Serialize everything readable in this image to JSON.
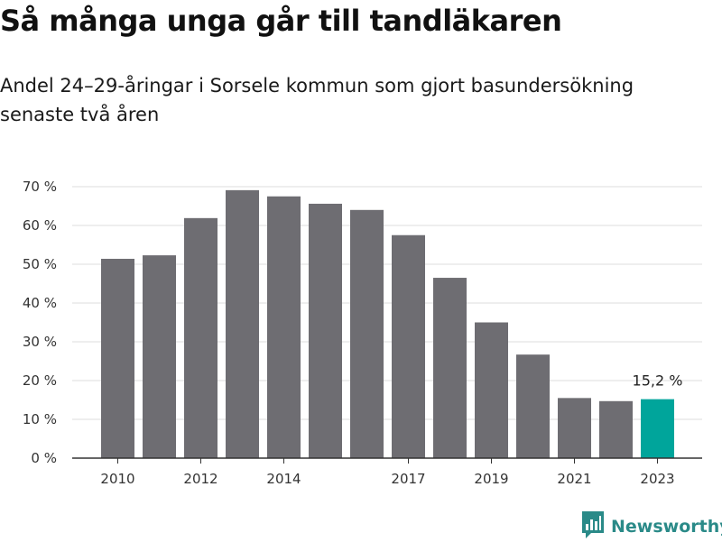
{
  "header": {
    "title": "Så många unga går till tandläkaren",
    "subtitle": "Andel 24–29-åringar i Sorsele kommun som gjort basundersökning senaste två åren"
  },
  "brand": {
    "name": "Newsworthy",
    "color": "#2a8a88",
    "icon": "newsworthy-chart-icon"
  },
  "chart_data": {
    "type": "bar",
    "x": [
      2010,
      2011,
      2012,
      2013,
      2014,
      2015,
      2016,
      2017,
      2018,
      2019,
      2020,
      2021,
      2022,
      2023
    ],
    "values": [
      51.4,
      52.3,
      61.9,
      69.1,
      67.5,
      65.6,
      64.0,
      57.5,
      46.5,
      35.0,
      26.7,
      15.5,
      14.7,
      15.2
    ],
    "x_tick_labels": [
      "2010",
      "2012",
      "2014",
      "2017",
      "2019",
      "2021",
      "2023"
    ],
    "y_tick_labels": [
      "0 %",
      "10 %",
      "20 %",
      "30 %",
      "40 %",
      "50 %",
      "60 %",
      "70 %"
    ],
    "y_ticks": [
      0,
      10,
      20,
      30,
      40,
      50,
      60,
      70
    ],
    "ylim": [
      0,
      70
    ],
    "unit": "%",
    "highlight_index": 13,
    "highlight_label": "15,2 %",
    "colors": {
      "bar": "#6e6d72",
      "highlight": "#00a59b",
      "grid": "#dddddd",
      "axis": "#333333"
    },
    "grid": true,
    "xlabel": "",
    "ylabel": ""
  }
}
